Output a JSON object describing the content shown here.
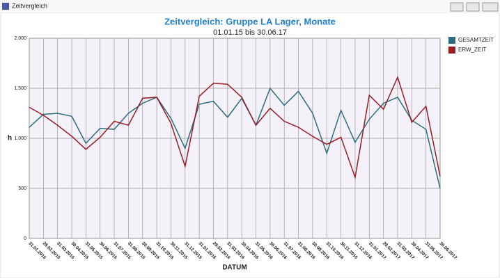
{
  "window": {
    "title": "Zeitvergleich"
  },
  "chart_data": {
    "type": "line",
    "title": "Zeitvergleich: Gruppe LA Lager, Monate",
    "subtitle": "01.01.15 bis 30.06.17",
    "ylabel": "h",
    "xlabel": "DATUM",
    "categories": [
      "31.01.2015",
      "28.02.2015",
      "31.03.2015",
      "30.04.2015",
      "31.05.2015",
      "30.06.2015",
      "31.07.2015",
      "31.08.2015",
      "30.09.2015",
      "31.10.2015",
      "30.11.2015",
      "31.12.2015",
      "31.01.2016",
      "29.02.2016",
      "31.03.2016",
      "30.04.2016",
      "31.05.2016",
      "30.06.2016",
      "31.07.2016",
      "31.08.2016",
      "30.09.2016",
      "31.10.2016",
      "30.11.2016",
      "31.12.2016",
      "31.01.2017",
      "28.02.2017",
      "31.03.2017",
      "30.04.2017",
      "31.05.2017",
      "30.06.2017"
    ],
    "series": [
      {
        "name": "GESAMTZEIT",
        "color": "#2a6e7e",
        "values": [
          1110,
          1240,
          1250,
          1220,
          950,
          1100,
          1090,
          1250,
          1350,
          1410,
          1200,
          900,
          1340,
          1370,
          1210,
          1400,
          1130,
          1500,
          1330,
          1470,
          1250,
          850,
          1280,
          960,
          1190,
          1350,
          1410,
          1180,
          1090,
          500
        ]
      },
      {
        "name": "ERW_ZEIT",
        "color": "#9b1b23",
        "values": [
          1310,
          1230,
          1130,
          1020,
          890,
          1010,
          1170,
          1130,
          1400,
          1410,
          1150,
          720,
          1420,
          1550,
          1540,
          1410,
          1130,
          1300,
          1170,
          1110,
          1020,
          940,
          1010,
          610,
          1430,
          1290,
          1610,
          1160,
          1320,
          620
        ]
      }
    ],
    "ylim": [
      0,
      2000
    ],
    "yticks": [
      0,
      500,
      {
        "value": 1000,
        "label": "1.000"
      },
      {
        "value": 1500,
        "label": "1.500"
      },
      {
        "value": 2000,
        "label": "2.000"
      }
    ],
    "grid": true,
    "legend": "top-right"
  }
}
